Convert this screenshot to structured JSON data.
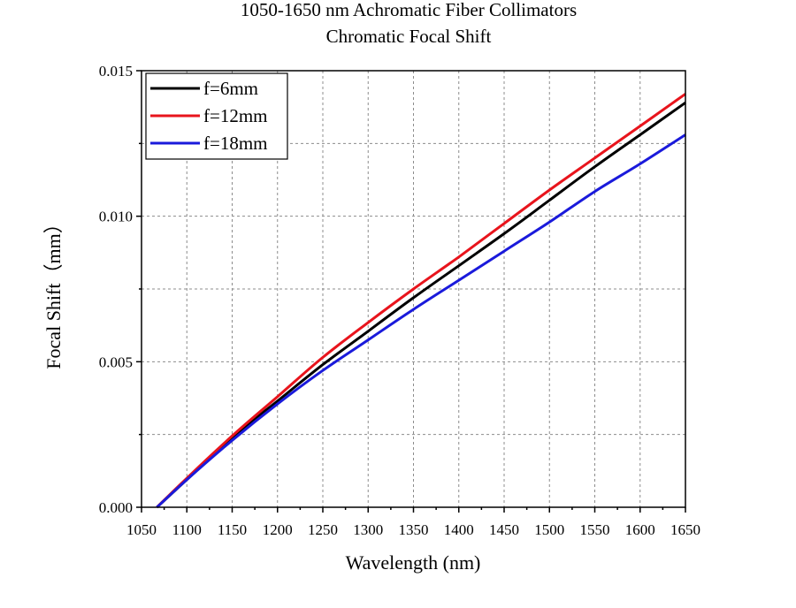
{
  "chart_data": {
    "type": "line",
    "title": "1050-1650 nm Achromatic Fiber Collimators",
    "subtitle": "Chromatic Focal Shift",
    "xlabel": "Wavelength (nm)",
    "ylabel": "Focal Shift（mm）",
    "xlim": [
      1050,
      1650
    ],
    "ylim": [
      0,
      0.015
    ],
    "xticks": [
      "1050",
      "1100",
      "1150",
      "1200",
      "1250",
      "1300",
      "1350",
      "1400",
      "1450",
      "1500",
      "1550",
      "1600",
      "1650"
    ],
    "yticks": [
      "0.000",
      "0.005",
      "0.010",
      "0.015"
    ],
    "grid": true,
    "legend_position": "top-left",
    "series": [
      {
        "name": "f=6mm",
        "color": "#000000",
        "x": [
          1067,
          1100,
          1150,
          1200,
          1250,
          1300,
          1350,
          1400,
          1450,
          1500,
          1550,
          1600,
          1650
        ],
        "y": [
          0.0,
          0.00095,
          0.0024,
          0.00365,
          0.0049,
          0.00605,
          0.0072,
          0.0083,
          0.0094,
          0.01055,
          0.0117,
          0.0128,
          0.0139
        ]
      },
      {
        "name": "f=12mm",
        "color": "#e8141c",
        "x": [
          1067,
          1100,
          1150,
          1200,
          1250,
          1300,
          1350,
          1400,
          1450,
          1500,
          1550,
          1600,
          1650
        ],
        "y": [
          0.0,
          0.001,
          0.00245,
          0.0038,
          0.00515,
          0.00635,
          0.0075,
          0.0086,
          0.00975,
          0.0109,
          0.012,
          0.0131,
          0.0142
        ]
      },
      {
        "name": "f=18mm",
        "color": "#1a1adb",
        "x": [
          1067,
          1100,
          1150,
          1200,
          1250,
          1300,
          1350,
          1400,
          1450,
          1500,
          1550,
          1600,
          1650
        ],
        "y": [
          0.0,
          0.00095,
          0.0023,
          0.00355,
          0.0047,
          0.00575,
          0.0068,
          0.0078,
          0.0088,
          0.0098,
          0.01085,
          0.0118,
          0.0128
        ]
      }
    ]
  }
}
